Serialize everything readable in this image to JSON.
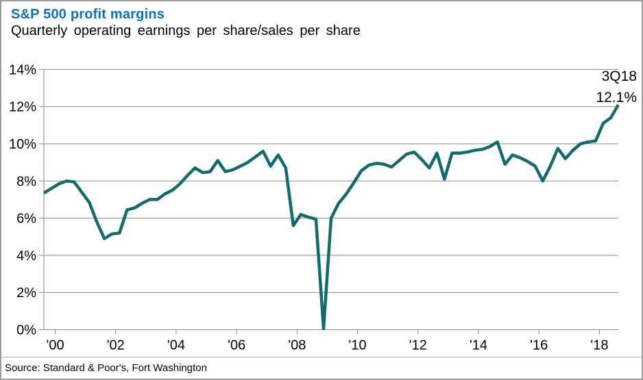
{
  "header": {
    "title": "S&P 500 profit margins",
    "subtitle": "Quarterly operating earnings per share/sales per share"
  },
  "annotation": {
    "quarter": "3Q18",
    "value": "12.1%"
  },
  "footer": {
    "source": "Source: Standard & Poor's, Fort Washington"
  },
  "colors": {
    "title_blue": "#0a72c4",
    "series_teal": "#116b6e",
    "grid_gray": "#878787",
    "border_gray": "#9b9b9b",
    "separator_gray": "#a8a8a8",
    "label_black": "#000000"
  },
  "chart_data": {
    "type": "line",
    "title": "S&P 500 profit margins",
    "subtitle": "Quarterly operating earnings per share/sales per share",
    "unit": "percent",
    "frequency": "quarterly",
    "start_quarter": "1999Q3",
    "end_quarter": "2018Q3",
    "ylim": [
      0,
      14
    ],
    "grid": "horizontal",
    "legend": "none",
    "y_tick_values": [
      0,
      2,
      4,
      6,
      8,
      10,
      12,
      14
    ],
    "y_tick_labels": [
      "0%",
      "2%",
      "4%",
      "6%",
      "8%",
      "10%",
      "12%",
      "14%"
    ],
    "x_ticks": [
      {
        "label": "'00",
        "year": 2000
      },
      {
        "label": "'02",
        "year": 2002
      },
      {
        "label": "'04",
        "year": 2004
      },
      {
        "label": "'06",
        "year": 2006
      },
      {
        "label": "'08",
        "year": 2008
      },
      {
        "label": "'10",
        "year": 2010
      },
      {
        "label": "'12",
        "year": 2012
      },
      {
        "label": "'14",
        "year": 2014
      },
      {
        "label": "'16",
        "year": 2016
      },
      {
        "label": "'18",
        "year": 2018
      }
    ],
    "last_point": {
      "label": "3Q18",
      "value": 12.1
    },
    "values": [
      7.35,
      7.6,
      7.85,
      8.0,
      7.95,
      7.4,
      6.85,
      5.8,
      4.9,
      5.15,
      5.2,
      6.45,
      6.55,
      6.8,
      7.0,
      7.0,
      7.3,
      7.5,
      7.85,
      8.3,
      8.7,
      8.45,
      8.5,
      9.1,
      8.5,
      8.6,
      8.8,
      9.0,
      9.3,
      9.6,
      8.8,
      9.4,
      8.7,
      5.6,
      6.2,
      6.05,
      5.95,
      0.05,
      6.0,
      6.8,
      7.3,
      7.9,
      8.55,
      8.85,
      8.95,
      8.9,
      8.75,
      9.1,
      9.45,
      9.55,
      9.15,
      8.7,
      9.5,
      8.1,
      9.5,
      9.5,
      9.55,
      9.65,
      9.7,
      9.85,
      10.1,
      8.9,
      9.4,
      9.25,
      9.05,
      8.8,
      8.0,
      8.8,
      9.75,
      9.2,
      9.65,
      10.0,
      10.1,
      10.15,
      11.1,
      11.4,
      12.1
    ]
  }
}
